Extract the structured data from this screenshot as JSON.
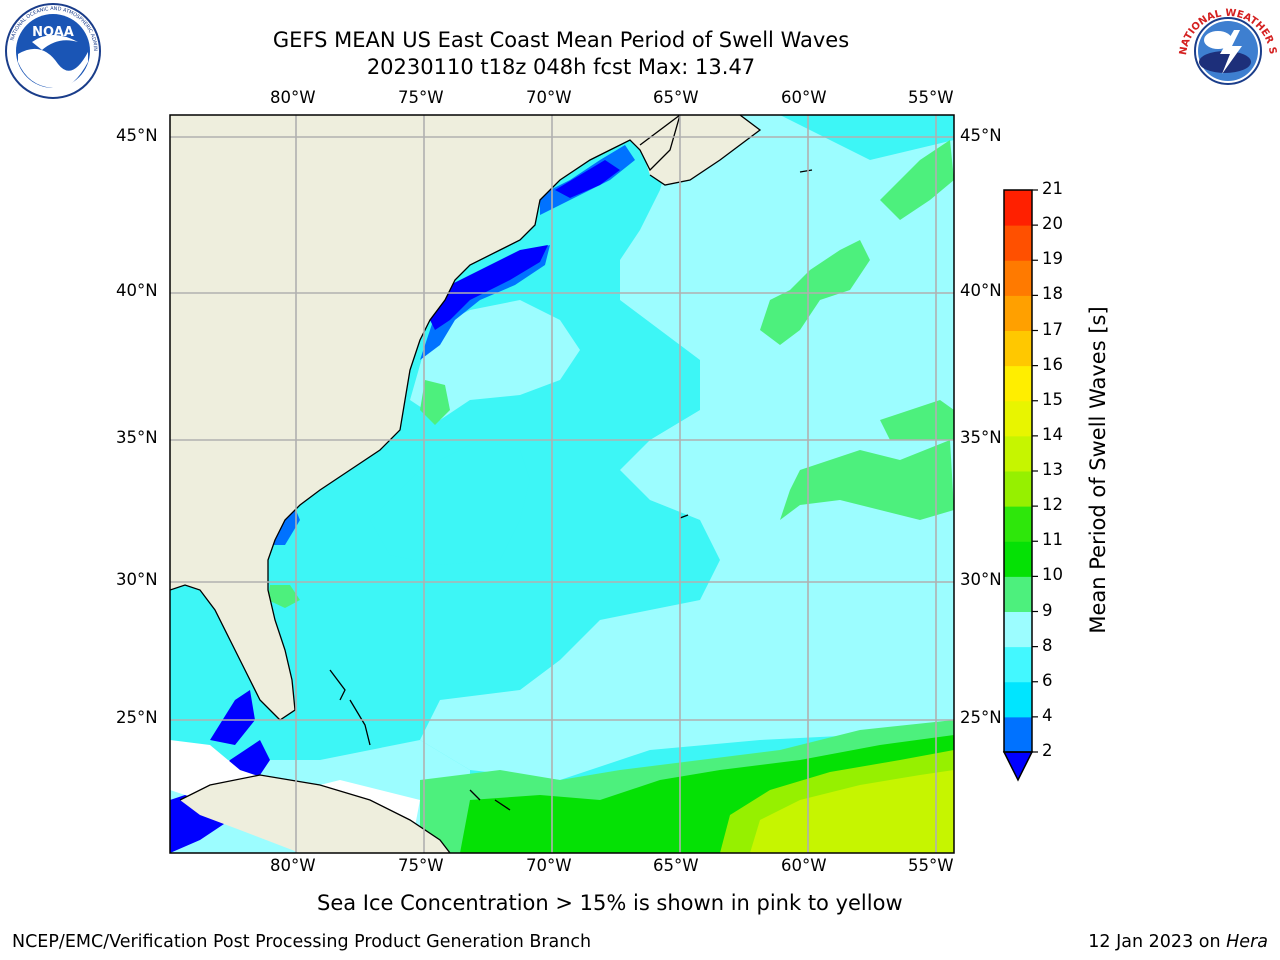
{
  "title": {
    "line1": "GEFS MEAN US East Coast Mean Period of Swell Waves",
    "line2": "20230110 t18z 048h fcst   Max: 13.47"
  },
  "logos": {
    "left": {
      "icon": "noaa-logo",
      "text": "NOAA"
    },
    "right": {
      "icon": "nws-logo",
      "text": "NATIONAL WEATHER SERVICE"
    }
  },
  "map": {
    "lon_labels": [
      "80°W",
      "75°W",
      "70°W",
      "65°W",
      "60°W",
      "55°W"
    ],
    "lat_labels": [
      "45°N",
      "40°N",
      "35°N",
      "30°N",
      "25°N"
    ],
    "colors": {
      "land": "#eeeedd",
      "ocean_base": "#3df6f6",
      "grid": "#b0b0b0",
      "frame": "#000000"
    }
  },
  "colorbar": {
    "label": "Mean Period of Swell Waves [s]",
    "ticks": [
      "2",
      "4",
      "6",
      "8",
      "9",
      "10",
      "11",
      "12",
      "13",
      "14",
      "15",
      "16",
      "17",
      "18",
      "19",
      "20",
      "21"
    ],
    "colors": [
      "#0072ff",
      "#00e5ff",
      "#43f8ff",
      "#9cfdff",
      "#4df07d",
      "#05e105",
      "#2ee70b",
      "#96f000",
      "#c6f500",
      "#e8f500",
      "#ffee00",
      "#ffc800",
      "#ffa000",
      "#ff7a00",
      "#ff5000",
      "#ff2000"
    ],
    "under_color": "#0000ff"
  },
  "note": "Sea Ice Concentration > 15% is shown in pink to yellow",
  "footer": {
    "left": "NCEP/EMC/Verification Post Processing Product Generation Branch",
    "date": "12 Jan 2023 on ",
    "machine": "Hera"
  }
}
